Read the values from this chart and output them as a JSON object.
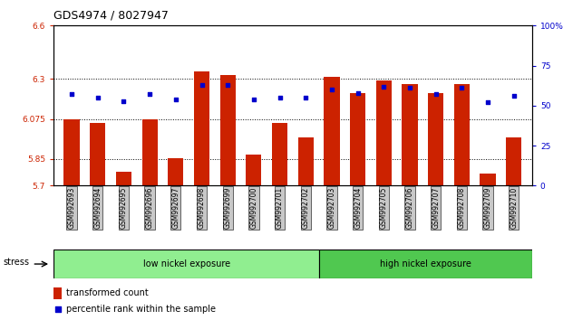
{
  "title": "GDS4974 / 8027947",
  "samples": [
    "GSM992693",
    "GSM992694",
    "GSM992695",
    "GSM992696",
    "GSM992697",
    "GSM992698",
    "GSM992699",
    "GSM992700",
    "GSM992701",
    "GSM992702",
    "GSM992703",
    "GSM992704",
    "GSM992705",
    "GSM992706",
    "GSM992707",
    "GSM992708",
    "GSM992709",
    "GSM992710"
  ],
  "bar_values": [
    6.075,
    6.05,
    5.78,
    6.075,
    5.855,
    6.34,
    6.32,
    5.875,
    6.05,
    5.97,
    6.31,
    6.22,
    6.29,
    6.27,
    6.22,
    6.27,
    5.77,
    5.97
  ],
  "percentile_values": [
    57,
    55,
    53,
    57,
    54,
    63,
    63,
    54,
    55,
    55,
    60,
    58,
    62,
    61,
    57,
    61,
    52,
    56
  ],
  "ymin": 5.7,
  "ymax": 6.6,
  "yticks": [
    5.7,
    5.85,
    6.075,
    6.3,
    6.6
  ],
  "ytick_labels": [
    "5.7",
    "5.85",
    "6.075",
    "6.3",
    "6.6"
  ],
  "y2min": 0,
  "y2max": 100,
  "y2ticks": [
    0,
    25,
    50,
    75,
    100
  ],
  "y2tick_labels": [
    "0",
    "25",
    "50",
    "75",
    "100%"
  ],
  "bar_color": "#cc2200",
  "dot_color": "#0000cc",
  "low_nickel_count": 10,
  "high_nickel_count": 8,
  "low_label": "low nickel exposure",
  "high_label": "high nickel exposure",
  "group_label": "stress",
  "legend_bar_label": "transformed count",
  "legend_dot_label": "percentile rank within the sample",
  "low_color": "#90ee90",
  "high_color": "#50c850",
  "sample_bg": "#c8c8c8"
}
